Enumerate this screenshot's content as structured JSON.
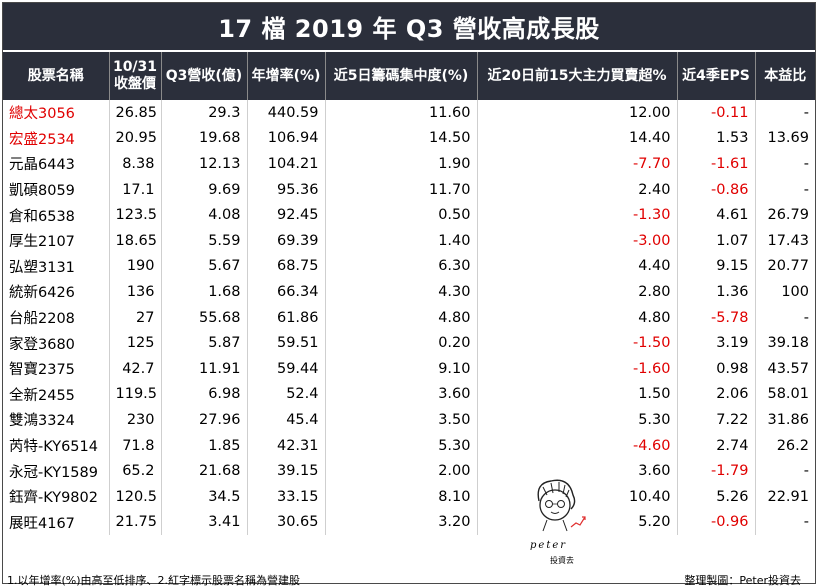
{
  "title": "17 檔 2019 年 Q3 營收高成長股",
  "headers": {
    "name": "股票名稱",
    "close_line1": "10/31",
    "close_line2": "收盤價",
    "revenue": "Q3營收(億)",
    "growth": "年增率(%)",
    "chip5d": "近5日籌碼集中度(%)",
    "top15": "近20日前15大主力買賣超%",
    "eps4q": "近4季EPS",
    "pe": "本益比"
  },
  "rows": [
    {
      "name": "總太3056",
      "red_name": true,
      "close": "26.85",
      "revenue": "29.3",
      "growth": "440.59",
      "chip": "11.60",
      "top15": "12.00",
      "top15_red": false,
      "eps": "-0.11",
      "eps_red": true,
      "pe": "-"
    },
    {
      "name": "宏盛2534",
      "red_name": true,
      "close": "20.95",
      "revenue": "19.68",
      "growth": "106.94",
      "chip": "14.50",
      "top15": "14.40",
      "top15_red": false,
      "eps": "1.53",
      "eps_red": false,
      "pe": "13.69"
    },
    {
      "name": "元晶6443",
      "red_name": false,
      "close": "8.38",
      "revenue": "12.13",
      "growth": "104.21",
      "chip": "1.90",
      "top15": "-7.70",
      "top15_red": true,
      "eps": "-1.61",
      "eps_red": true,
      "pe": "-"
    },
    {
      "name": "凱碩8059",
      "red_name": false,
      "close": "17.1",
      "revenue": "9.69",
      "growth": "95.36",
      "chip": "11.70",
      "top15": "2.40",
      "top15_red": false,
      "eps": "-0.86",
      "eps_red": true,
      "pe": "-"
    },
    {
      "name": "倉和6538",
      "red_name": false,
      "close": "123.5",
      "revenue": "4.08",
      "growth": "92.45",
      "chip": "0.50",
      "top15": "-1.30",
      "top15_red": true,
      "eps": "4.61",
      "eps_red": false,
      "pe": "26.79"
    },
    {
      "name": "厚生2107",
      "red_name": false,
      "close": "18.65",
      "revenue": "5.59",
      "growth": "69.39",
      "chip": "1.40",
      "top15": "-3.00",
      "top15_red": true,
      "eps": "1.07",
      "eps_red": false,
      "pe": "17.43"
    },
    {
      "name": "弘塑3131",
      "red_name": false,
      "close": "190",
      "revenue": "5.67",
      "growth": "68.75",
      "chip": "6.30",
      "top15": "4.40",
      "top15_red": false,
      "eps": "9.15",
      "eps_red": false,
      "pe": "20.77"
    },
    {
      "name": "統新6426",
      "red_name": false,
      "close": "136",
      "revenue": "1.68",
      "growth": "66.34",
      "chip": "4.30",
      "top15": "2.80",
      "top15_red": false,
      "eps": "1.36",
      "eps_red": false,
      "pe": "100"
    },
    {
      "name": "台船2208",
      "red_name": false,
      "close": "27",
      "revenue": "55.68",
      "growth": "61.86",
      "chip": "4.80",
      "top15": "4.80",
      "top15_red": false,
      "eps": "-5.78",
      "eps_red": true,
      "pe": "-"
    },
    {
      "name": "家登3680",
      "red_name": false,
      "close": "125",
      "revenue": "5.87",
      "growth": "59.51",
      "chip": "0.20",
      "top15": "-1.50",
      "top15_red": true,
      "eps": "3.19",
      "eps_red": false,
      "pe": "39.18"
    },
    {
      "name": "智寶2375",
      "red_name": false,
      "close": "42.7",
      "revenue": "11.91",
      "growth": "59.44",
      "chip": "9.10",
      "top15": "-1.60",
      "top15_red": true,
      "eps": "0.98",
      "eps_red": false,
      "pe": "43.57"
    },
    {
      "name": "全新2455",
      "red_name": false,
      "close": "119.5",
      "revenue": "6.98",
      "growth": "52.4",
      "chip": "3.60",
      "top15": "1.50",
      "top15_red": false,
      "eps": "2.06",
      "eps_red": false,
      "pe": "58.01"
    },
    {
      "name": "雙鴻3324",
      "red_name": false,
      "close": "230",
      "revenue": "27.96",
      "growth": "45.4",
      "chip": "3.50",
      "top15": "5.30",
      "top15_red": false,
      "eps": "7.22",
      "eps_red": false,
      "pe": "31.86"
    },
    {
      "name": "芮特-KY6514",
      "red_name": false,
      "close": "71.8",
      "revenue": "1.85",
      "growth": "42.31",
      "chip": "5.30",
      "top15": "-4.60",
      "top15_red": true,
      "eps": "2.74",
      "eps_red": false,
      "pe": "26.2"
    },
    {
      "name": "永冠-KY1589",
      "red_name": false,
      "close": "65.2",
      "revenue": "21.68",
      "growth": "39.15",
      "chip": "2.00",
      "top15": "3.60",
      "top15_red": false,
      "eps": "-1.79",
      "eps_red": true,
      "pe": "-"
    },
    {
      "name": "鈺齊-KY9802",
      "red_name": false,
      "close": "120.5",
      "revenue": "34.5",
      "growth": "33.15",
      "chip": "8.10",
      "top15": "10.40",
      "top15_red": false,
      "eps": "5.26",
      "eps_red": false,
      "pe": "22.91"
    },
    {
      "name": "展旺4167",
      "red_name": false,
      "close": "21.75",
      "revenue": "3.41",
      "growth": "30.65",
      "chip": "3.20",
      "top15": "5.20",
      "top15_red": false,
      "eps": "-0.96",
      "eps_red": true,
      "pe": "-"
    }
  ],
  "footer": {
    "note": "1.以年增率(%)由高至低排序、2.紅字標示股票名稱為營建股",
    "credit": "整理製圖：Peter投資去"
  },
  "mascot": {
    "signature": "peter",
    "sub_text": "投資去"
  },
  "colors": {
    "header_bg": "#2b2f3b",
    "highlight_red": "#e00000"
  }
}
